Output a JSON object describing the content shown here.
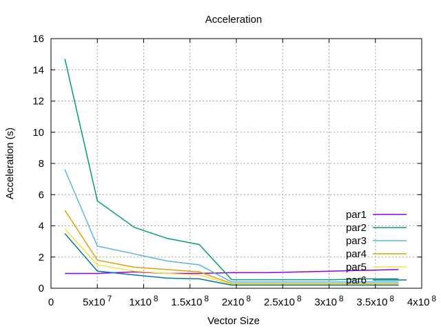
{
  "chart_data": {
    "type": "line",
    "title": "Acceleration",
    "xlabel": "Vector Size",
    "ylabel": "Acceleration (s)",
    "xlim": [
      0,
      400000000
    ],
    "ylim": [
      0,
      16
    ],
    "grid": true,
    "legend_position": "bottom-right",
    "xticks": [
      {
        "value": 0,
        "mant": "0",
        "exp": ""
      },
      {
        "value": 50000000,
        "mant": "5x10",
        "exp": "7"
      },
      {
        "value": 100000000,
        "mant": "1x10",
        "exp": "8"
      },
      {
        "value": 150000000,
        "mant": "1.5x10",
        "exp": "8"
      },
      {
        "value": 200000000,
        "mant": "2x10",
        "exp": "8"
      },
      {
        "value": 250000000,
        "mant": "2.5x10",
        "exp": "8"
      },
      {
        "value": 300000000,
        "mant": "3x10",
        "exp": "8"
      },
      {
        "value": 350000000,
        "mant": "3.5x10",
        "exp": "8"
      },
      {
        "value": 400000000,
        "mant": "4x10",
        "exp": "8"
      }
    ],
    "yticks": [
      0,
      2,
      4,
      6,
      8,
      10,
      12,
      14,
      16
    ],
    "x": [
      15000000,
      50000000,
      90000000,
      125000000,
      160000000,
      195000000,
      235000000,
      270000000,
      305000000,
      340000000,
      375000000
    ],
    "series": [
      {
        "name": "par1",
        "color": "#9400d3",
        "values": [
          0.95,
          0.95,
          1.05,
          0.95,
          0.95,
          1.0,
          1.0,
          1.05,
          1.1,
          1.15,
          1.2
        ]
      },
      {
        "name": "par2",
        "color": "#009e73",
        "values": [
          14.7,
          5.6,
          3.9,
          3.2,
          2.8,
          0.55,
          0.55,
          0.55,
          0.55,
          0.6,
          0.6
        ]
      },
      {
        "name": "par3",
        "color": "#56b4e9",
        "values": [
          7.6,
          2.7,
          2.2,
          1.75,
          1.5,
          0.4,
          0.4,
          0.4,
          0.4,
          0.4,
          0.4
        ]
      },
      {
        "name": "par4",
        "color": "#e69f00",
        "values": [
          5.0,
          1.8,
          1.35,
          1.2,
          1.05,
          0.3,
          0.3,
          0.3,
          0.3,
          0.3,
          0.3
        ]
      },
      {
        "name": "par5",
        "color": "#f0e442",
        "values": [
          3.8,
          1.5,
          1.1,
          0.95,
          0.85,
          0.25,
          0.25,
          0.25,
          0.25,
          0.25,
          0.25
        ]
      },
      {
        "name": "par6",
        "color": "#0072b2",
        "values": [
          3.5,
          1.1,
          0.85,
          0.65,
          0.6,
          0.2,
          0.2,
          0.2,
          0.2,
          0.2,
          0.2
        ]
      }
    ]
  }
}
